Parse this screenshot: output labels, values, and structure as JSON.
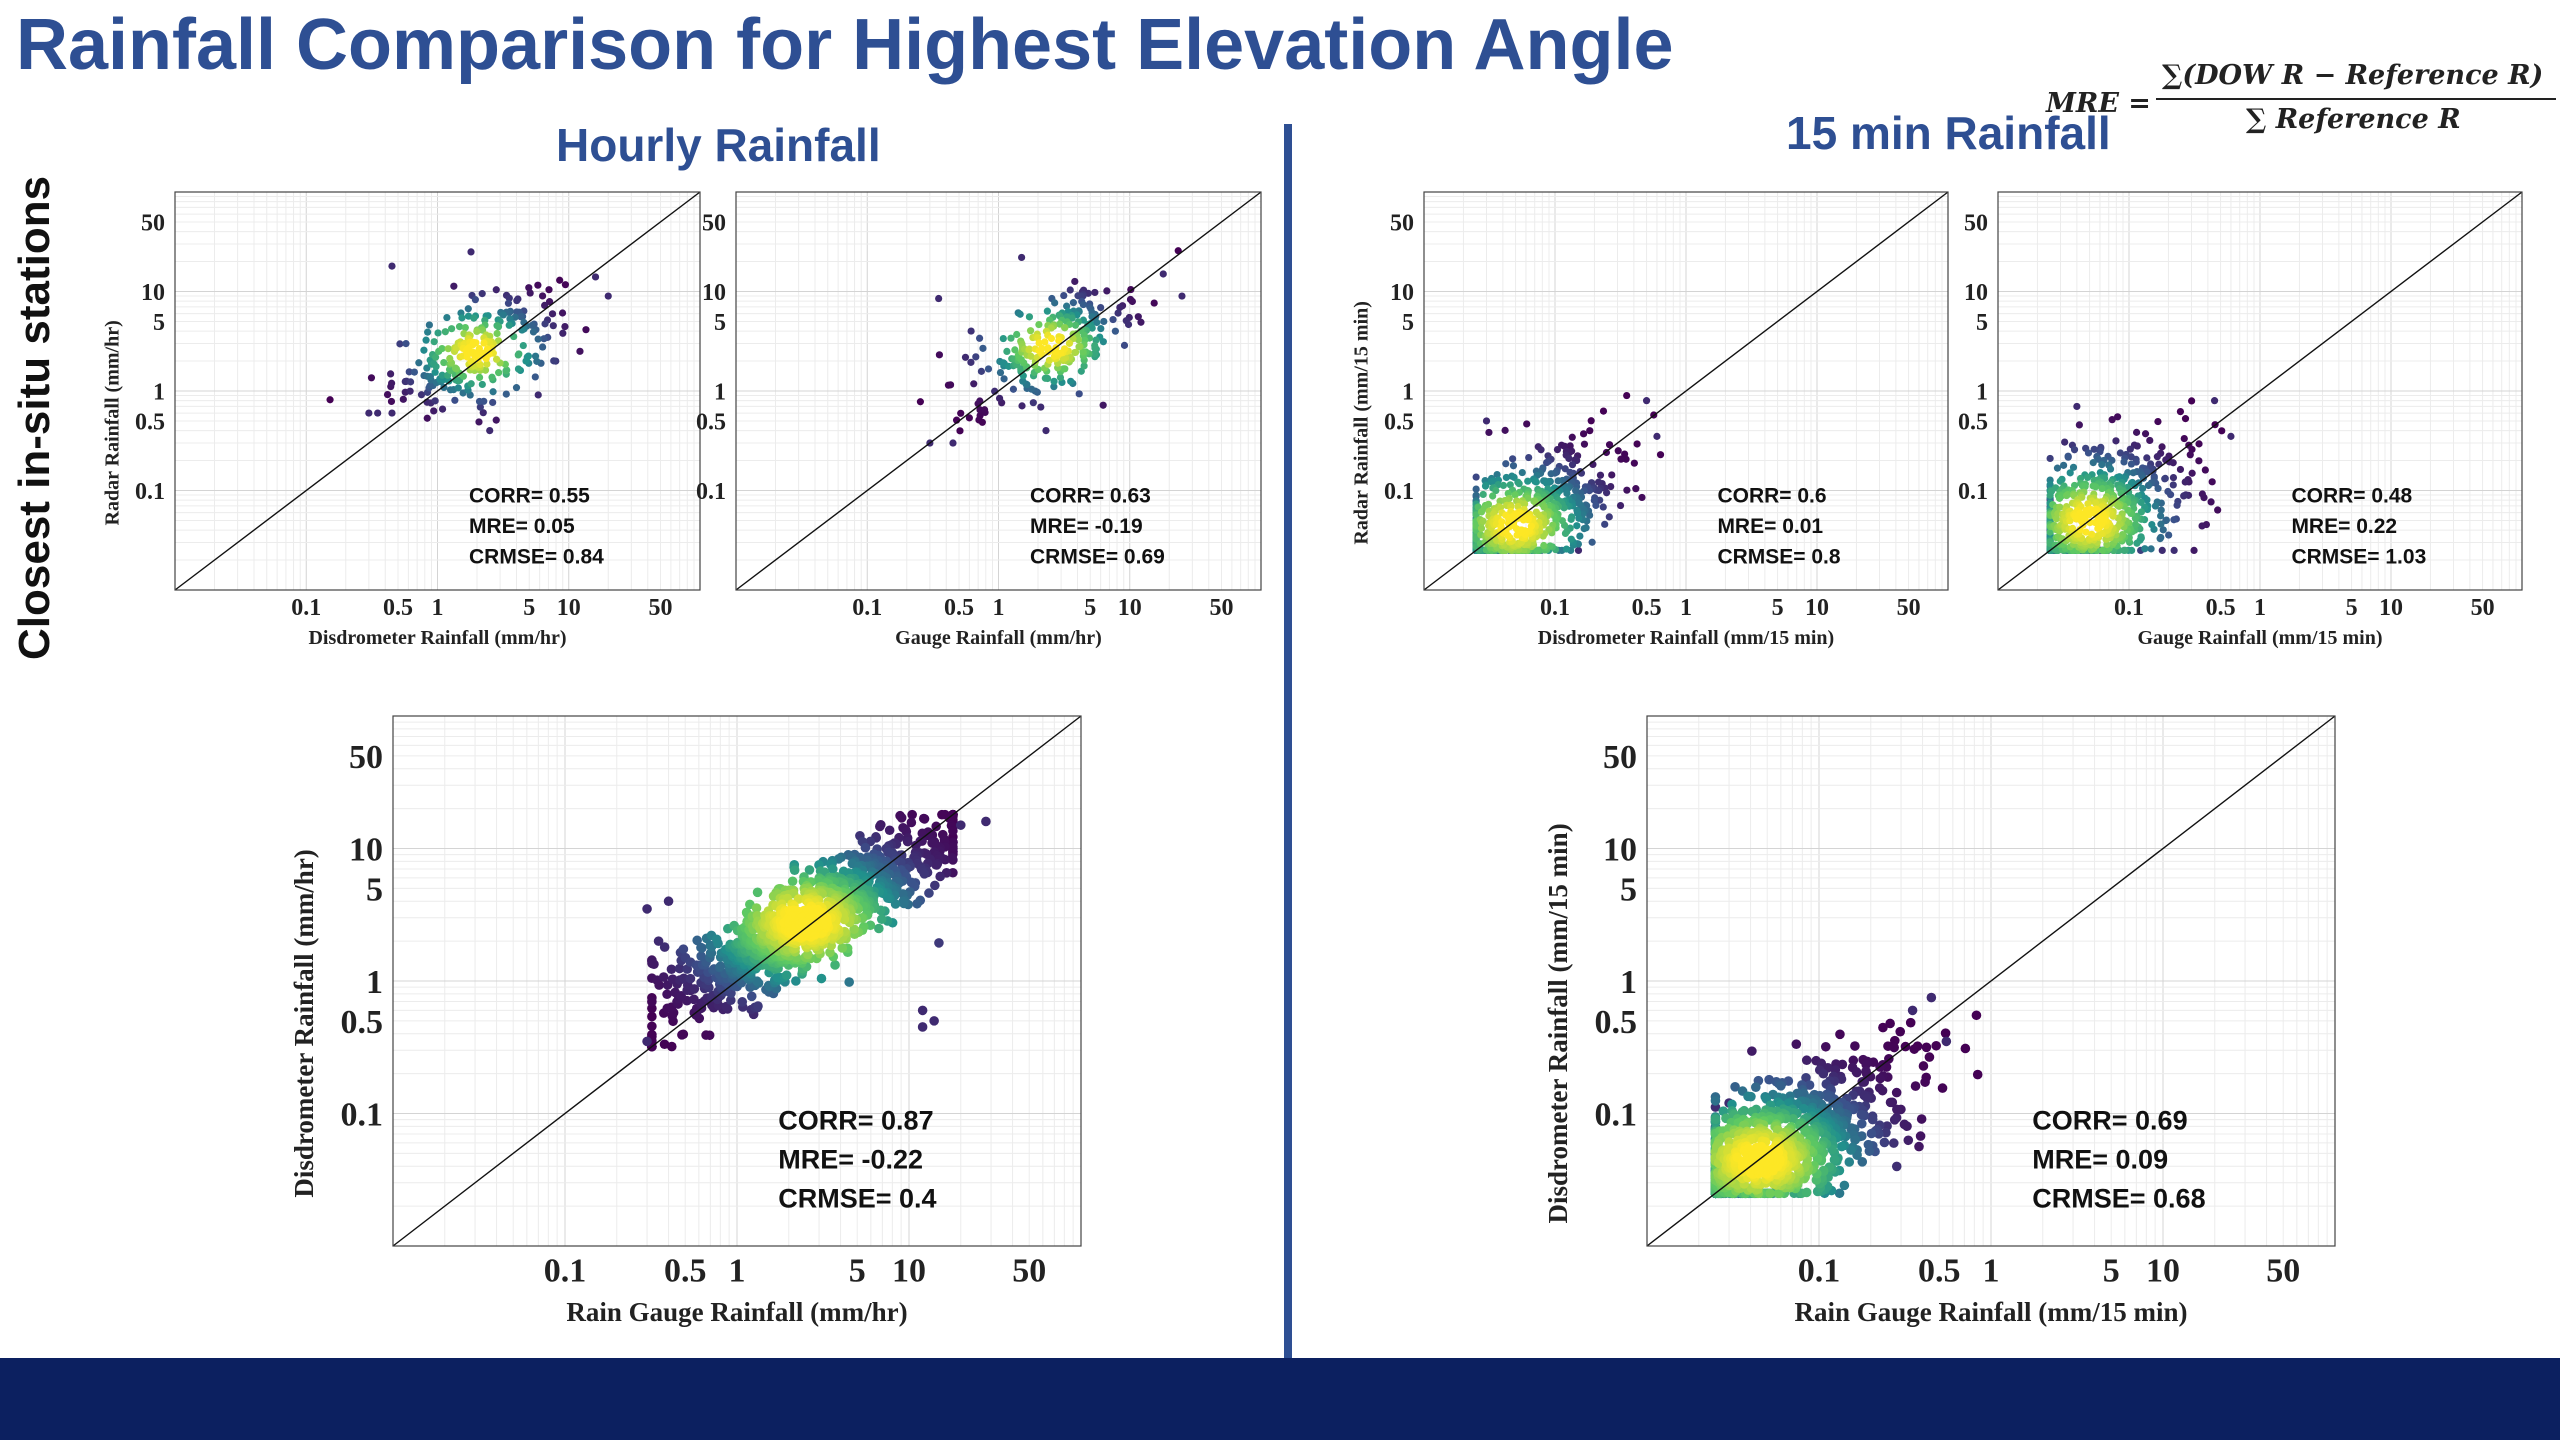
{
  "slide": {
    "title": "Rainfall Comparison for Highest Elevation Angle",
    "hourly_title": "Hourly Rainfall",
    "min15_title": "15 min Rainfall",
    "side_label": "Closest in-situ stations",
    "formula": {
      "lhs": "MRE =",
      "numerator": "∑(DOW R − Reference R)",
      "denominator": "∑ Reference R"
    }
  },
  "chart_data": [
    {
      "id": "hourly-disdrometer",
      "type": "scatter",
      "xlabel": "Disdrometer Rainfall (mm/hr)",
      "ylabel": "Radar Rainfall (mm/hr)",
      "xscale": "log",
      "yscale": "log",
      "xlim": [
        0.01,
        100
      ],
      "ylim": [
        0.01,
        100
      ],
      "xticks": [
        0.1,
        0.5,
        1,
        5,
        10,
        50
      ],
      "yticks": [
        0.1,
        0.5,
        1,
        5,
        10,
        50
      ],
      "grid": true,
      "reference_line": "1:1",
      "stats": [
        "CORR= 0.55",
        "MRE= 0.05",
        "CRMSE= 0.84"
      ],
      "cloud": {
        "center": [
          2.0,
          2.5
        ],
        "spread_x": 0.32,
        "spread_y": 0.3,
        "correlation": 0.55,
        "n": 260
      },
      "points": [
        [
          0.45,
          18
        ],
        [
          1.8,
          25
        ],
        [
          0.3,
          0.6
        ],
        [
          0.35,
          0.6
        ],
        [
          0.45,
          0.6
        ],
        [
          2.5,
          0.4
        ],
        [
          16,
          14
        ],
        [
          20,
          9
        ]
      ]
    },
    {
      "id": "hourly-gauge",
      "type": "scatter",
      "xlabel": "Gauge Rainfall (mm/hr)",
      "ylabel": "",
      "xscale": "log",
      "yscale": "log",
      "xlim": [
        0.01,
        100
      ],
      "ylim": [
        0.01,
        100
      ],
      "xticks": [
        0.1,
        0.5,
        1,
        5,
        10,
        50
      ],
      "yticks": [
        0.1,
        0.5,
        1,
        5,
        10,
        50
      ],
      "grid": true,
      "reference_line": "1:1",
      "stats": [
        "CORR= 0.63",
        "MRE= -0.19",
        "CRMSE= 0.69"
      ],
      "cloud": {
        "center": [
          2.5,
          2.8
        ],
        "spread_x": 0.32,
        "spread_y": 0.3,
        "correlation": 0.63,
        "n": 260
      },
      "points": [
        [
          0.35,
          8.5
        ],
        [
          1.5,
          22
        ],
        [
          0.3,
          0.3
        ],
        [
          0.45,
          0.3
        ],
        [
          2.3,
          0.4
        ],
        [
          18,
          15
        ],
        [
          25,
          9
        ]
      ]
    },
    {
      "id": "min15-disdrometer",
      "type": "scatter",
      "xlabel": "Disdrometer Rainfall (mm/15 min)",
      "ylabel": "Radar Rainfall (mm/15 min)",
      "xscale": "log",
      "yscale": "log",
      "xlim": [
        0.01,
        100
      ],
      "ylim": [
        0.01,
        100
      ],
      "xticks": [
        0.1,
        0.5,
        1,
        5,
        10,
        50
      ],
      "yticks": [
        0.1,
        0.5,
        1,
        5,
        10,
        50
      ],
      "grid": true,
      "reference_line": "1:1",
      "stats": [
        "CORR= 0.6",
        "MRE= 0.01",
        "CRMSE= 0.8"
      ],
      "cloud": {
        "center": [
          0.05,
          0.045
        ],
        "spread_x": 0.38,
        "spread_y": 0.38,
        "correlation": 0.6,
        "n": 700,
        "min": 0.025,
        "max": 0.9
      },
      "points": [
        [
          0.5,
          0.8
        ],
        [
          0.6,
          0.35
        ],
        [
          0.03,
          0.5
        ]
      ]
    },
    {
      "id": "min15-gauge",
      "type": "scatter",
      "xlabel": "Gauge Rainfall (mm/15 min)",
      "ylabel": "",
      "xscale": "log",
      "yscale": "log",
      "xlim": [
        0.01,
        100
      ],
      "ylim": [
        0.01,
        100
      ],
      "xticks": [
        0.1,
        0.5,
        1,
        5,
        10,
        50
      ],
      "yticks": [
        0.1,
        0.5,
        1,
        5,
        10,
        50
      ],
      "grid": true,
      "reference_line": "1:1",
      "stats": [
        "CORR= 0.48",
        "MRE= 0.22",
        "CRMSE= 1.03"
      ],
      "cloud": {
        "center": [
          0.05,
          0.05
        ],
        "spread_x": 0.38,
        "spread_y": 0.4,
        "correlation": 0.48,
        "n": 700,
        "min": 0.025,
        "max": 0.9
      },
      "points": [
        [
          0.45,
          0.8
        ],
        [
          0.6,
          0.35
        ],
        [
          0.04,
          0.7
        ]
      ]
    },
    {
      "id": "hourly-raingauge-disdrometer",
      "type": "scatter",
      "xlabel": "Rain Gauge Rainfall (mm/hr)",
      "ylabel": "Disdrometer Rainfall (mm/hr)",
      "xscale": "log",
      "yscale": "log",
      "xlim": [
        0.01,
        100
      ],
      "ylim": [
        0.01,
        100
      ],
      "xticks": [
        0.1,
        0.5,
        1,
        5,
        10,
        50
      ],
      "yticks": [
        0.1,
        0.5,
        1,
        5,
        10,
        50
      ],
      "grid": true,
      "reference_line": "1:1",
      "stats": [
        "CORR= 0.87",
        "MRE= -0.22",
        "CRMSE= 0.4"
      ],
      "cloud": {
        "center": [
          2.5,
          2.8
        ],
        "spread_x": 0.42,
        "spread_y": 0.36,
        "correlation": 0.87,
        "n": 1100,
        "min": 0.32,
        "max": 18
      },
      "points": [
        [
          0.3,
          3.5
        ],
        [
          0.4,
          4
        ],
        [
          0.35,
          2
        ],
        [
          0.3,
          0.35
        ],
        [
          20,
          15
        ],
        [
          28,
          16
        ],
        [
          12,
          0.45
        ],
        [
          12,
          0.6
        ],
        [
          14,
          0.5
        ]
      ]
    },
    {
      "id": "min15-raingauge-disdrometer",
      "type": "scatter",
      "xlabel": "Rain Gauge Rainfall (mm/15 min)",
      "ylabel": "Disdrometer Rainfall (mm/15 min)",
      "xscale": "log",
      "yscale": "log",
      "xlim": [
        0.01,
        100
      ],
      "ylim": [
        0.01,
        100
      ],
      "xticks": [
        0.1,
        0.5,
        1,
        5,
        10,
        50
      ],
      "yticks": [
        0.1,
        0.5,
        1,
        5,
        10,
        50
      ],
      "grid": true,
      "reference_line": "1:1",
      "stats": [
        "CORR= 0.69",
        "MRE= 0.09",
        "CRMSE= 0.68"
      ],
      "cloud": {
        "center": [
          0.045,
          0.045
        ],
        "spread_x": 0.4,
        "spread_y": 0.36,
        "correlation": 0.69,
        "n": 1100,
        "min": 0.025,
        "max": 0.9
      },
      "points": [
        [
          0.45,
          0.75
        ],
        [
          0.55,
          0.35
        ],
        [
          0.03,
          0.12
        ],
        [
          0.35,
          0.6
        ]
      ]
    }
  ]
}
